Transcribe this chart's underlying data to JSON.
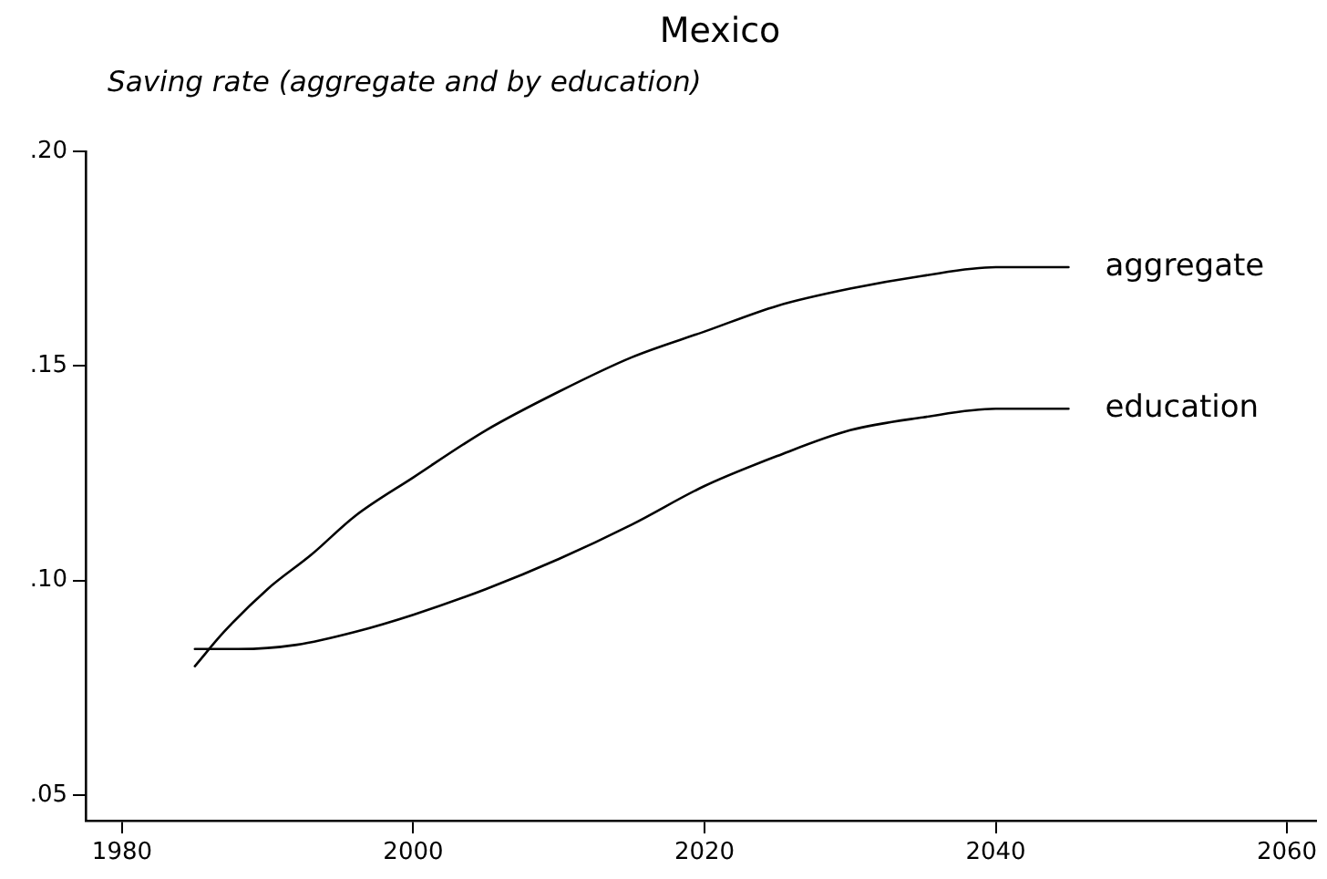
{
  "chart_data": {
    "type": "line",
    "title": "Mexico",
    "subtitle": "Saving rate (aggregate and by education)",
    "series": [
      {
        "name": "aggregate",
        "color": "#000000",
        "x": [
          1985,
          1987,
          1990,
          1993,
          1996,
          2000,
          2005,
          2010,
          2015,
          2020,
          2025,
          2030,
          2035,
          2040,
          2045
        ],
        "values": [
          0.08,
          0.088,
          0.098,
          0.106,
          0.115,
          0.124,
          0.135,
          0.144,
          0.152,
          0.158,
          0.164,
          0.168,
          0.171,
          0.173,
          0.173
        ]
      },
      {
        "name": "education",
        "color": "#000000",
        "x": [
          1985,
          1988,
          1992,
          1996,
          2000,
          2005,
          2010,
          2015,
          2020,
          2025,
          2030,
          2035,
          2040,
          2045
        ],
        "values": [
          0.084,
          0.084,
          0.085,
          0.088,
          0.092,
          0.098,
          0.105,
          0.113,
          0.122,
          0.129,
          0.135,
          0.138,
          0.14,
          0.14
        ]
      }
    ],
    "xlim": [
      1977.5,
      2062
    ],
    "xticks": [
      1980,
      2000,
      2020,
      2040,
      2060
    ],
    "ylim": [
      0.044,
      0.2
    ],
    "yticks": [
      {
        "value": 0.05,
        "label": ".05"
      },
      {
        "value": 0.1,
        "label": ".10"
      },
      {
        "value": 0.15,
        "label": ".15"
      },
      {
        "value": 0.2,
        "label": ".20"
      }
    ],
    "legend": false,
    "grid": false,
    "marker": "none",
    "line_style": "solid"
  }
}
